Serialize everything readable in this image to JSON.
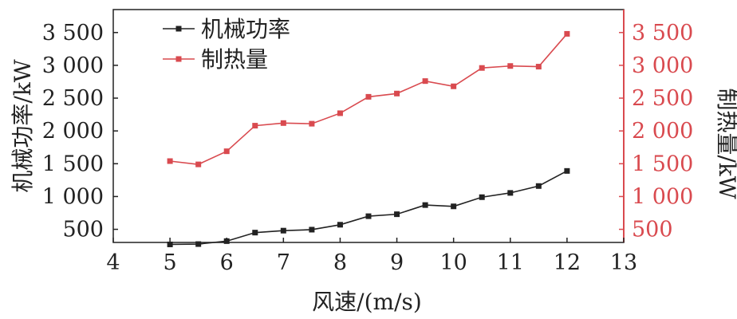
{
  "chart_data": {
    "type": "line",
    "xlabel": "风速/(m/s)",
    "ylabel_left": "机械功率/kW",
    "ylabel_right": "制热量/kW",
    "xlim": [
      4,
      13
    ],
    "xticks": [
      "4",
      "5",
      "6",
      "7",
      "8",
      "9",
      "10",
      "11",
      "12",
      "13"
    ],
    "ylim": [
      300,
      3850
    ],
    "yticks": [
      "500",
      "1 000",
      "1 500",
      "2 000",
      "2 500",
      "3 000",
      "3 500"
    ],
    "ytick_values": [
      500,
      1000,
      1500,
      2000,
      2500,
      3000,
      3500
    ],
    "x": [
      5,
      5.5,
      6,
      6.5,
      7,
      7.5,
      8,
      8.5,
      9,
      9.5,
      10,
      10.5,
      11,
      11.5,
      12
    ],
    "series": [
      {
        "name": "机械功率",
        "axis": "left",
        "color": "#222222",
        "values": [
          270,
          275,
          320,
          450,
          480,
          495,
          570,
          700,
          730,
          870,
          850,
          990,
          1055,
          1160,
          1390
        ]
      },
      {
        "name": "制热量",
        "axis": "right",
        "color": "#d94a4f",
        "values": [
          1540,
          1490,
          1690,
          2080,
          2120,
          2110,
          2270,
          2520,
          2570,
          2760,
          2680,
          2960,
          2990,
          2980,
          3480
        ]
      }
    ],
    "legend_position": "top-left",
    "grid": false
  }
}
